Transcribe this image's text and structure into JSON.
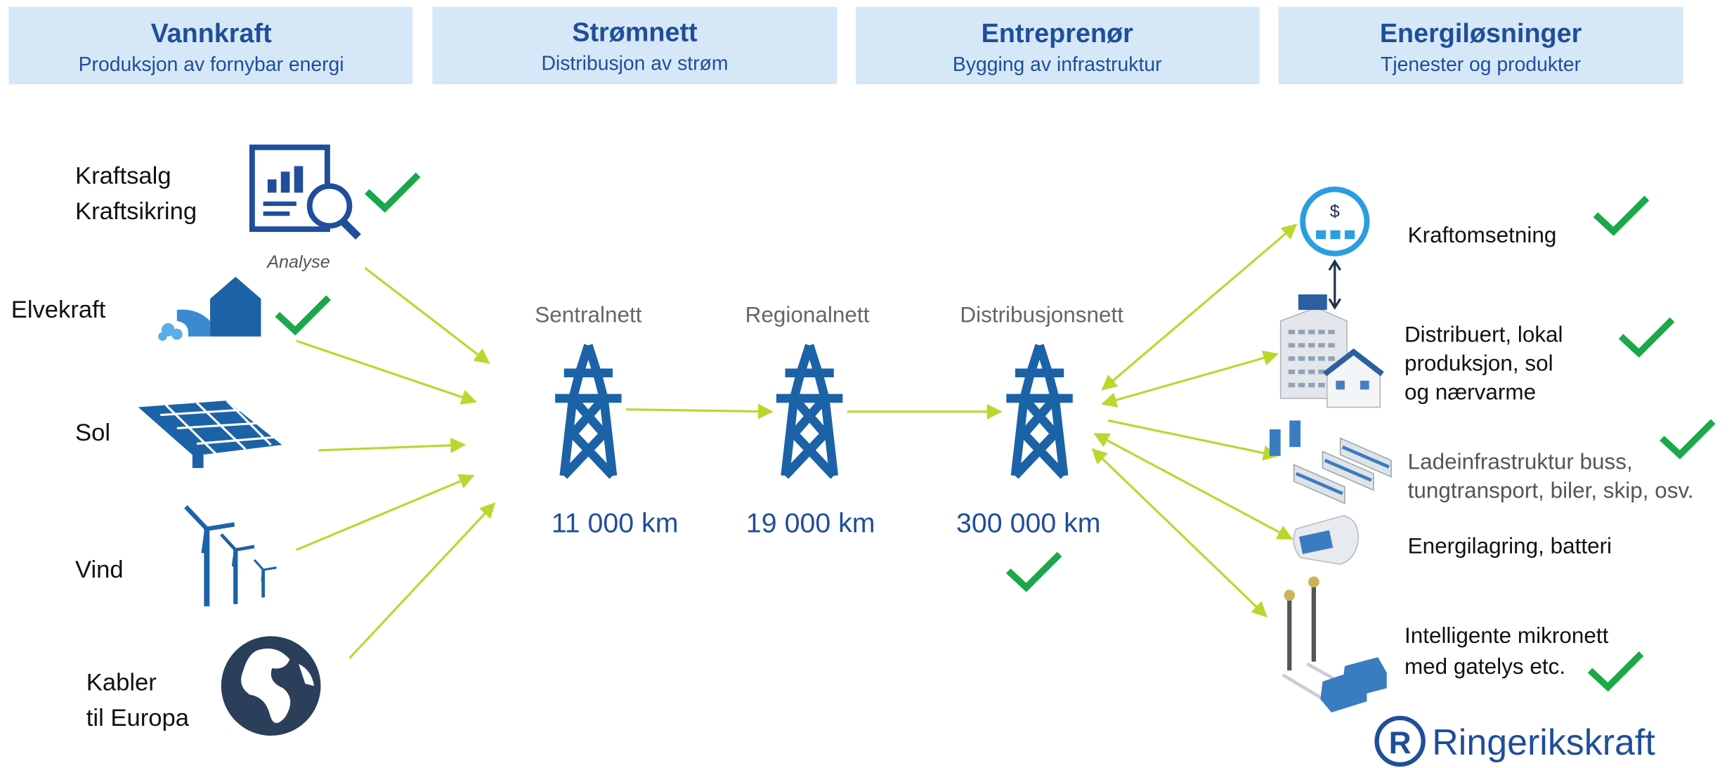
{
  "header": [
    {
      "title": "Vannkraft",
      "subtitle": "Produksjon av fornybar energi"
    },
    {
      "title": "Strømnett",
      "subtitle": "Distribusjon av strøm"
    },
    {
      "title": "Entreprenør",
      "subtitle": "Bygging av infrastruktur"
    },
    {
      "title": "Energiløsninger",
      "subtitle": "Tjenester og produkter"
    }
  ],
  "sources": [
    {
      "lines": [
        "Kraftsalg",
        "Kraftsikring"
      ],
      "caption": "Analyse"
    },
    {
      "lines": [
        "Elvekraft"
      ]
    },
    {
      "lines": [
        "Sol"
      ]
    },
    {
      "lines": [
        "Vind"
      ]
    },
    {
      "lines": [
        "Kabler",
        "til Europa"
      ]
    }
  ],
  "grid": [
    {
      "name": "Sentralnett",
      "length": "11 000 km"
    },
    {
      "name": "Regionalnett",
      "length": "19 000 km"
    },
    {
      "name": "Distribusjonsnett",
      "length": "300 000 km"
    }
  ],
  "solutions": [
    {
      "lines": [
        "Kraftomsetning"
      ]
    },
    {
      "lines": [
        "Distribuert, lokal",
        "produksjon, sol",
        "og nærvarme"
      ]
    },
    {
      "lines": [
        "Ladeinfrastruktur buss,",
        "tungtransport, biler, skip, osv."
      ]
    },
    {
      "lines": [
        "Energilagring, batteri"
      ]
    },
    {
      "lines": [
        "Intelligente mikronett",
        "med gatelys etc."
      ]
    }
  ],
  "logo": "Ringerikskraft"
}
